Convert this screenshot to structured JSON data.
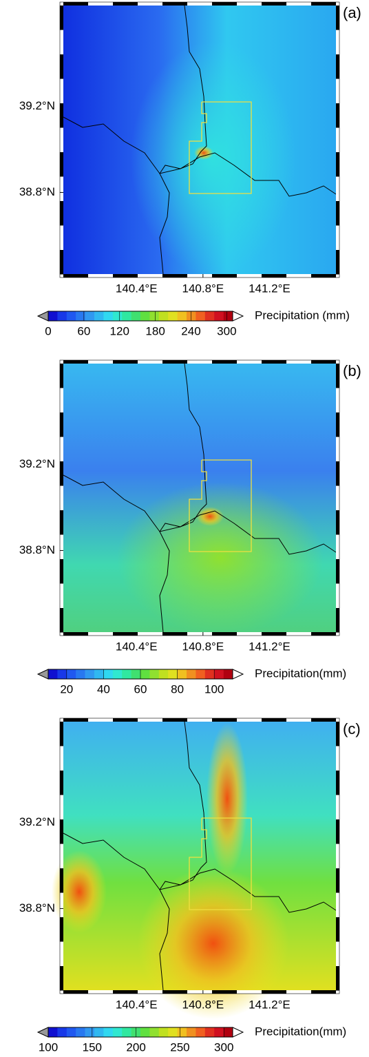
{
  "panels": [
    {
      "label": "(a)",
      "xlim": [
        139.96,
        141.6
      ],
      "ylim": [
        38.42,
        39.67
      ],
      "xticks": [
        {
          "value": 140.4,
          "label": "140.4°E"
        },
        {
          "value": 140.8,
          "label": "140.8°E"
        },
        {
          "value": 141.2,
          "label": "141.2°E"
        }
      ],
      "yticks": [
        {
          "value": 38.8,
          "label": "38.8°N"
        },
        {
          "value": 39.2,
          "label": "39.2°N"
        }
      ],
      "colorbar": {
        "label": "Precipitation (mm)",
        "lim": [
          0,
          310
        ],
        "ticks": [
          0,
          60,
          120,
          180,
          240,
          300
        ]
      }
    },
    {
      "label": "(b)",
      "xlim": [
        139.96,
        141.6
      ],
      "ylim": [
        38.42,
        39.67
      ],
      "xticks": [
        {
          "value": 140.4,
          "label": "140.4°E"
        },
        {
          "value": 140.8,
          "label": "140.8°E"
        },
        {
          "value": 141.2,
          "label": "141.2°E"
        }
      ],
      "yticks": [
        {
          "value": 38.8,
          "label": "38.8°N"
        },
        {
          "value": 39.2,
          "label": "39.2°N"
        }
      ],
      "colorbar": {
        "label": "Precipitation(mm)",
        "lim": [
          10,
          110
        ],
        "ticks": [
          20,
          40,
          60,
          80,
          100
        ]
      }
    },
    {
      "label": "(c)",
      "xlim": [
        139.96,
        141.6
      ],
      "ylim": [
        38.42,
        39.67
      ],
      "xticks": [
        {
          "value": 140.4,
          "label": "140.4°E"
        },
        {
          "value": 140.8,
          "label": "140.8°E"
        },
        {
          "value": 141.2,
          "label": "141.2°E"
        }
      ],
      "yticks": [
        {
          "value": 38.8,
          "label": "38.8°N"
        },
        {
          "value": 39.2,
          "label": "39.2°N"
        }
      ],
      "colorbar": {
        "label": "Precipitation(mm)",
        "lim": [
          100,
          310
        ],
        "ticks": [
          100,
          150,
          200,
          250,
          300
        ]
      }
    }
  ]
}
